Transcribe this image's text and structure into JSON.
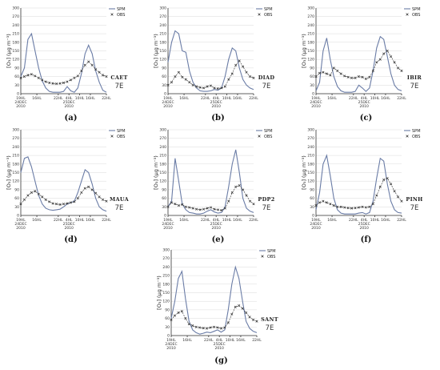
{
  "figure": {
    "legend": {
      "spm": "SPM",
      "obs": "OBS"
    },
    "ylabel": "[O₃] (μg m⁻³)",
    "timezone": "7E",
    "colors": {
      "spm": "#6a7ca6",
      "obs": "#333333"
    }
  },
  "chart_data": [
    {
      "type": "line",
      "label": "(a)",
      "station": "CAET",
      "x": [
        0,
        2,
        4,
        6,
        8,
        10,
        12,
        14,
        16,
        18,
        20,
        22,
        24,
        26,
        28,
        30,
        32,
        34,
        36,
        38,
        40,
        42,
        44,
        46,
        48
      ],
      "xticks": [
        {
          "x": 0,
          "lines": [
            "19HL",
            "24DEC",
            "2010"
          ]
        },
        {
          "x": 9,
          "lines": [
            "16HL"
          ]
        },
        {
          "x": 21,
          "lines": [
            "22HL"
          ]
        },
        {
          "x": 27,
          "lines": [
            "4HL",
            "25DEC",
            "2010"
          ]
        },
        {
          "x": 33,
          "lines": [
            "10HL"
          ]
        },
        {
          "x": 39,
          "lines": [
            "16HL"
          ]
        },
        {
          "x": 48,
          "lines": [
            "22HL"
          ]
        }
      ],
      "ylim": [
        0,
        300
      ],
      "yticks": [
        0,
        30,
        60,
        90,
        120,
        150,
        180,
        210,
        240,
        270,
        300
      ],
      "series": [
        {
          "name": "SPM",
          "values": [
            60,
            90,
            190,
            210,
            150,
            90,
            45,
            20,
            8,
            5,
            5,
            5,
            8,
            25,
            10,
            5,
            20,
            70,
            140,
            170,
            140,
            80,
            40,
            12,
            5
          ]
        },
        {
          "name": "OBS",
          "values": [
            55,
            60,
            65,
            68,
            62,
            55,
            48,
            42,
            38,
            36,
            35,
            36,
            38,
            42,
            48,
            55,
            62,
            80,
            100,
            112,
            100,
            85,
            75,
            65,
            60
          ]
        }
      ]
    },
    {
      "type": "line",
      "label": "(b)",
      "station": "DIAD",
      "x": [
        0,
        2,
        4,
        6,
        8,
        10,
        12,
        14,
        16,
        18,
        20,
        22,
        24,
        26,
        28,
        30,
        32,
        34,
        36,
        38,
        40,
        42,
        44,
        46,
        48
      ],
      "xticks": [
        {
          "x": 0,
          "lines": [
            "19HL",
            "24DEC",
            "2010"
          ]
        },
        {
          "x": 9,
          "lines": [
            "16HL"
          ]
        },
        {
          "x": 21,
          "lines": [
            "22HL"
          ]
        },
        {
          "x": 27,
          "lines": [
            "4HL",
            "25DEC",
            "2010"
          ]
        },
        {
          "x": 33,
          "lines": [
            "10HL"
          ]
        },
        {
          "x": 39,
          "lines": [
            "16HL"
          ]
        },
        {
          "x": 48,
          "lines": [
            "22HL"
          ]
        }
      ],
      "ylim": [
        0,
        300
      ],
      "yticks": [
        0,
        30,
        60,
        90,
        120,
        150,
        180,
        210,
        240,
        270,
        300
      ],
      "series": [
        {
          "name": "SPM",
          "values": [
            110,
            180,
            220,
            210,
            150,
            145,
            80,
            40,
            20,
            10,
            8,
            8,
            10,
            15,
            12,
            20,
            60,
            120,
            160,
            150,
            90,
            50,
            30,
            20,
            15
          ]
        },
        {
          "name": "OBS",
          "values": [
            30,
            40,
            60,
            75,
            58,
            50,
            40,
            30,
            25,
            22,
            20,
            25,
            28,
            20,
            18,
            20,
            25,
            50,
            70,
            100,
            115,
            95,
            75,
            60,
            55
          ]
        }
      ]
    },
    {
      "type": "line",
      "label": "(c)",
      "station": "IBIR",
      "x": [
        0,
        2,
        4,
        6,
        8,
        10,
        12,
        14,
        16,
        18,
        20,
        22,
        24,
        26,
        28,
        30,
        32,
        34,
        36,
        38,
        40,
        42,
        44,
        46,
        48
      ],
      "xticks": [
        {
          "x": 0,
          "lines": [
            "19HL",
            "24DEC",
            "2010"
          ]
        },
        {
          "x": 9,
          "lines": [
            "16HL"
          ]
        },
        {
          "x": 21,
          "lines": [
            "22HL"
          ]
        },
        {
          "x": 27,
          "lines": [
            "4HL",
            "25DEC",
            "2010"
          ]
        },
        {
          "x": 33,
          "lines": [
            "10HL"
          ]
        },
        {
          "x": 39,
          "lines": [
            "16HL"
          ]
        },
        {
          "x": 48,
          "lines": [
            "22HL"
          ]
        }
      ],
      "ylim": [
        0,
        300
      ],
      "yticks": [
        0,
        30,
        60,
        90,
        120,
        150,
        180,
        210,
        240,
        270,
        300
      ],
      "series": [
        {
          "name": "SPM",
          "values": [
            10,
            40,
            150,
            195,
            120,
            60,
            25,
            10,
            5,
            5,
            5,
            8,
            30,
            20,
            8,
            20,
            80,
            160,
            200,
            190,
            130,
            70,
            30,
            15,
            10
          ]
        },
        {
          "name": "OBS",
          "values": [
            60,
            72,
            75,
            70,
            65,
            90,
            80,
            70,
            62,
            58,
            55,
            55,
            60,
            58,
            52,
            58,
            80,
            110,
            120,
            140,
            150,
            130,
            110,
            90,
            80
          ]
        }
      ]
    },
    {
      "type": "line",
      "label": "(d)",
      "station": "MAUA",
      "x": [
        0,
        2,
        4,
        6,
        8,
        10,
        12,
        14,
        16,
        18,
        20,
        22,
        24,
        26,
        28,
        30,
        32,
        34,
        36,
        38,
        40,
        42,
        44,
        46,
        48
      ],
      "xticks": [
        {
          "x": 0,
          "lines": [
            "19HL",
            "24DEC",
            "2010"
          ]
        },
        {
          "x": 9,
          "lines": [
            "16HL"
          ]
        },
        {
          "x": 21,
          "lines": [
            "22HL"
          ]
        },
        {
          "x": 27,
          "lines": [
            "4HL",
            "25DEC",
            "2010"
          ]
        },
        {
          "x": 33,
          "lines": [
            "10HL"
          ]
        },
        {
          "x": 39,
          "lines": [
            "16HL"
          ]
        },
        {
          "x": 48,
          "lines": [
            "22HL"
          ]
        }
      ],
      "ylim": [
        0,
        300
      ],
      "yticks": [
        0,
        30,
        60,
        90,
        120,
        150,
        180,
        210,
        240,
        270,
        300
      ],
      "series": [
        {
          "name": "SPM",
          "values": [
            150,
            200,
            205,
            170,
            120,
            70,
            40,
            25,
            20,
            18,
            20,
            22,
            30,
            40,
            45,
            50,
            80,
            120,
            160,
            150,
            110,
            60,
            30,
            20,
            15
          ]
        },
        {
          "name": "OBS",
          "values": [
            40,
            55,
            70,
            80,
            85,
            75,
            65,
            55,
            48,
            42,
            40,
            38,
            40,
            42,
            45,
            48,
            60,
            80,
            95,
            100,
            90,
            78,
            65,
            55,
            50
          ]
        }
      ]
    },
    {
      "type": "line",
      "label": "(e)",
      "station": "PDP2",
      "x": [
        0,
        2,
        4,
        6,
        8,
        10,
        12,
        14,
        16,
        18,
        20,
        22,
        24,
        26,
        28,
        30,
        32,
        34,
        36,
        38,
        40,
        42,
        44,
        46,
        48
      ],
      "xticks": [
        {
          "x": 0,
          "lines": [
            "19HL",
            "24DEC",
            "2010"
          ]
        },
        {
          "x": 9,
          "lines": [
            "16HL"
          ]
        },
        {
          "x": 21,
          "lines": [
            "22HL"
          ]
        },
        {
          "x": 27,
          "lines": [
            "4HL",
            "25DEC",
            "2010"
          ]
        },
        {
          "x": 33,
          "lines": [
            "10HL"
          ]
        },
        {
          "x": 39,
          "lines": [
            "16HL"
          ]
        },
        {
          "x": 48,
          "lines": [
            "22HL"
          ]
        }
      ],
      "ylim": [
        0,
        300
      ],
      "yticks": [
        0,
        30,
        60,
        90,
        120,
        150,
        180,
        210,
        240,
        270,
        300
      ],
      "series": [
        {
          "name": "SPM",
          "values": [
            30,
            50,
            200,
            120,
            40,
            20,
            10,
            8,
            5,
            5,
            8,
            15,
            20,
            12,
            8,
            10,
            30,
            100,
            180,
            230,
            150,
            60,
            25,
            15,
            10
          ]
        },
        {
          "name": "OBS",
          "values": [
            30,
            45,
            40,
            35,
            38,
            30,
            28,
            25,
            22,
            20,
            22,
            25,
            28,
            22,
            20,
            18,
            25,
            50,
            80,
            100,
            105,
            90,
            70,
            50,
            40
          ]
        }
      ]
    },
    {
      "type": "line",
      "label": "(f)",
      "station": "PINH",
      "x": [
        0,
        2,
        4,
        6,
        8,
        10,
        12,
        14,
        16,
        18,
        20,
        22,
        24,
        26,
        28,
        30,
        32,
        34,
        36,
        38,
        40,
        42,
        44,
        46,
        48
      ],
      "xticks": [
        {
          "x": 0,
          "lines": [
            "19HL",
            "24DEC",
            "2010"
          ]
        },
        {
          "x": 9,
          "lines": [
            "16HL"
          ]
        },
        {
          "x": 21,
          "lines": [
            "22HL"
          ]
        },
        {
          "x": 27,
          "lines": [
            "4HL",
            "25DEC",
            "2010"
          ]
        },
        {
          "x": 33,
          "lines": [
            "10HL"
          ]
        },
        {
          "x": 39,
          "lines": [
            "16HL"
          ]
        },
        {
          "x": 48,
          "lines": [
            "22HL"
          ]
        }
      ],
      "ylim": [
        0,
        300
      ],
      "yticks": [
        0,
        30,
        60,
        90,
        120,
        150,
        180,
        210,
        240,
        270,
        300
      ],
      "series": [
        {
          "name": "SPM",
          "values": [
            20,
            80,
            180,
            210,
            140,
            60,
            20,
            8,
            5,
            5,
            5,
            5,
            8,
            10,
            5,
            10,
            50,
            130,
            200,
            190,
            110,
            50,
            20,
            10,
            8
          ]
        },
        {
          "name": "OBS",
          "values": [
            35,
            45,
            50,
            45,
            40,
            35,
            30,
            30,
            28,
            26,
            25,
            26,
            28,
            30,
            28,
            30,
            40,
            70,
            100,
            125,
            130,
            110,
            85,
            65,
            50
          ]
        }
      ]
    },
    {
      "type": "line",
      "label": "(g)",
      "station": "SANT",
      "x": [
        0,
        2,
        4,
        6,
        8,
        10,
        12,
        14,
        16,
        18,
        20,
        22,
        24,
        26,
        28,
        30,
        32,
        34,
        36,
        38,
        40,
        42,
        44,
        46,
        48
      ],
      "xticks": [
        {
          "x": 0,
          "lines": [
            "19HL",
            "24DEC",
            "2010"
          ]
        },
        {
          "x": 9,
          "lines": [
            "16HL"
          ]
        },
        {
          "x": 21,
          "lines": [
            "22HL"
          ]
        },
        {
          "x": 27,
          "lines": [
            "4HL",
            "25DEC",
            "2010"
          ]
        },
        {
          "x": 33,
          "lines": [
            "10HL"
          ]
        },
        {
          "x": 39,
          "lines": [
            "16HL"
          ]
        },
        {
          "x": 48,
          "lines": [
            "22HL"
          ]
        }
      ],
      "ylim": [
        0,
        300
      ],
      "yticks": [
        0,
        30,
        60,
        90,
        120,
        150,
        180,
        210,
        240,
        270,
        300
      ],
      "series": [
        {
          "name": "SPM",
          "values": [
            60,
            120,
            200,
            225,
            130,
            50,
            20,
            10,
            5,
            8,
            12,
            10,
            15,
            20,
            12,
            20,
            90,
            180,
            240,
            200,
            120,
            50,
            25,
            15,
            10
          ]
        },
        {
          "name": "OBS",
          "values": [
            55,
            70,
            80,
            85,
            60,
            40,
            35,
            30,
            28,
            26,
            25,
            28,
            30,
            28,
            25,
            28,
            45,
            75,
            100,
            105,
            95,
            80,
            65,
            55,
            50
          ]
        }
      ]
    }
  ]
}
